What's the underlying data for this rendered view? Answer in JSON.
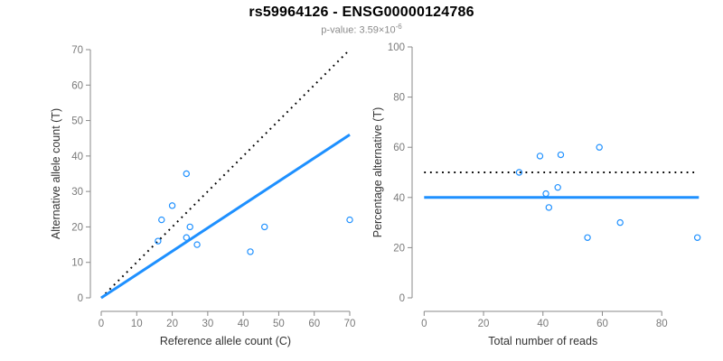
{
  "header": {
    "title": "rs59964126 - ENSG00000124786",
    "p_value_base": "p-value: 3.59×10",
    "p_value_exponent": "-6"
  },
  "colors": {
    "accent_blue": "#1E90FF",
    "line_black": "#000000",
    "axis_line_gray": "#898989",
    "tick_label_gray": "#7a7a7a",
    "axis_title_dark": "#333333",
    "title_black": "#000000",
    "subtitle_gray": "#8b8b8b",
    "background": "#ffffff"
  },
  "chart_data": [
    {
      "id": "allele-counts-scatter",
      "type": "scatter",
      "xlabel": "Reference allele count (C)",
      "ylabel": "Alternative allele count (T)",
      "xlim": [
        0,
        70
      ],
      "ylim": [
        0,
        70
      ],
      "xticks": [
        0,
        10,
        20,
        30,
        40,
        50,
        60,
        70
      ],
      "yticks": [
        0,
        10,
        20,
        30,
        40,
        50,
        60,
        70
      ],
      "grid": false,
      "legend": null,
      "marker": "open-circle",
      "points": [
        {
          "x": 24,
          "y": 35
        },
        {
          "x": 20,
          "y": 26
        },
        {
          "x": 17,
          "y": 22
        },
        {
          "x": 25,
          "y": 20
        },
        {
          "x": 16,
          "y": 16
        },
        {
          "x": 24,
          "y": 17
        },
        {
          "x": 27,
          "y": 15
        },
        {
          "x": 46,
          "y": 20
        },
        {
          "x": 42,
          "y": 13
        },
        {
          "x": 70,
          "y": 22
        }
      ],
      "lines": [
        {
          "name": "identity-line",
          "style": "dotted",
          "color": "#000000",
          "from": [
            0,
            0
          ],
          "to": [
            70,
            70
          ]
        },
        {
          "name": "fit-line",
          "style": "solid",
          "color": "#1E90FF",
          "from": [
            0,
            0
          ],
          "to": [
            70,
            46
          ]
        }
      ]
    },
    {
      "id": "percentage-vs-reads-scatter",
      "type": "scatter",
      "xlabel": "Total number of reads",
      "ylabel": "Percentage alternative (T)",
      "xlim": [
        0,
        92
      ],
      "ylim": [
        0,
        100
      ],
      "xticks": [
        0,
        20,
        40,
        60,
        80
      ],
      "yticks": [
        0,
        20,
        40,
        60,
        80,
        100
      ],
      "grid": false,
      "legend": null,
      "marker": "open-circle",
      "points": [
        {
          "x": 32,
          "y": 50
        },
        {
          "x": 39,
          "y": 56.5
        },
        {
          "x": 46,
          "y": 57
        },
        {
          "x": 59,
          "y": 60
        },
        {
          "x": 45,
          "y": 44
        },
        {
          "x": 41,
          "y": 41.5
        },
        {
          "x": 42,
          "y": 36
        },
        {
          "x": 66,
          "y": 30
        },
        {
          "x": 55,
          "y": 24
        },
        {
          "x": 92,
          "y": 24
        }
      ],
      "lines": [
        {
          "name": "fifty-percent-line",
          "style": "dotted",
          "color": "#000000",
          "from": [
            0,
            50
          ],
          "to": [
            91,
            50
          ]
        },
        {
          "name": "mean-percentage-line",
          "style": "solid",
          "color": "#1E90FF",
          "from": [
            0,
            40
          ],
          "to": [
            92.5,
            40
          ]
        }
      ]
    }
  ]
}
